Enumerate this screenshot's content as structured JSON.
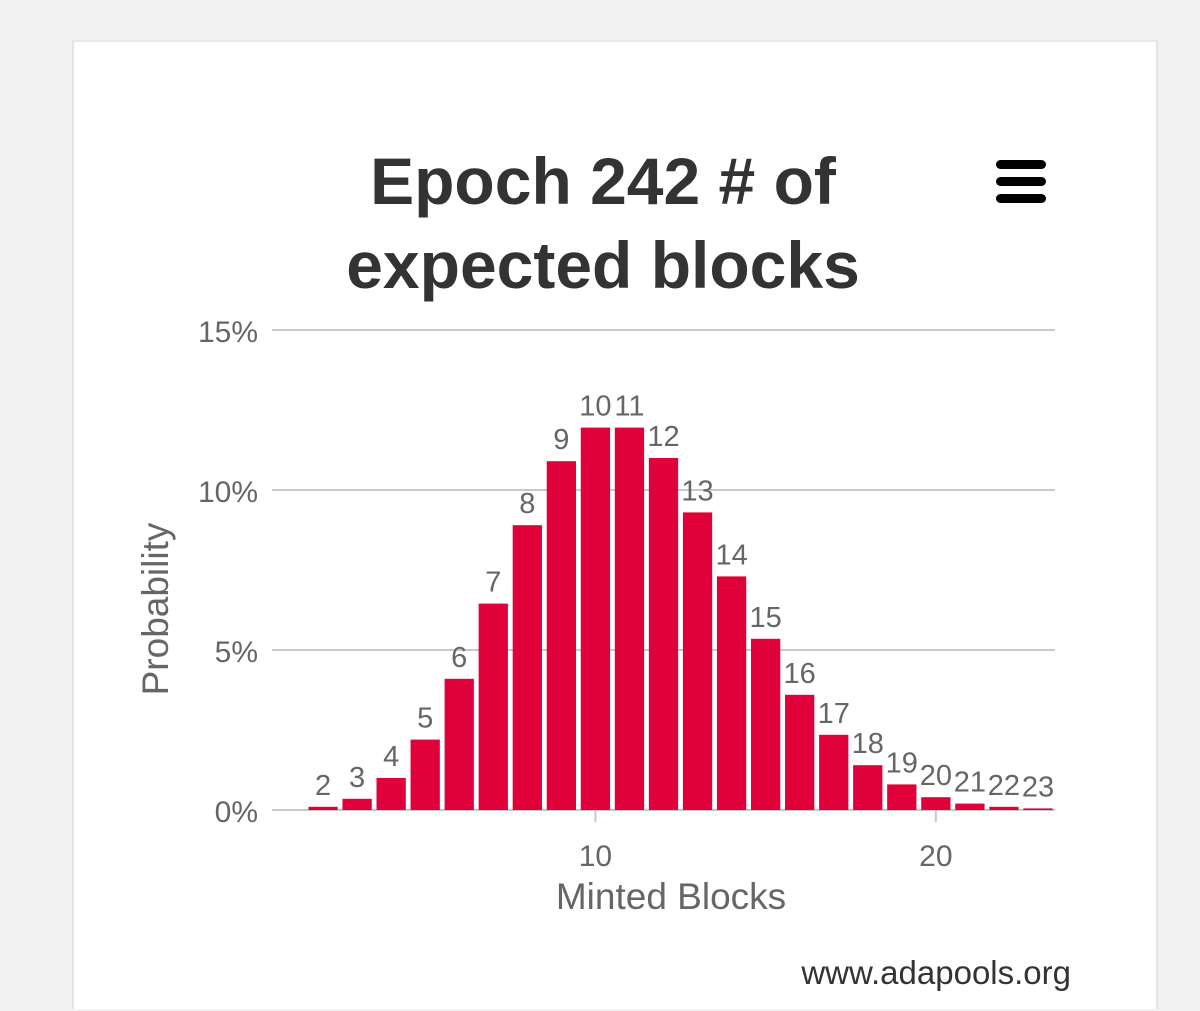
{
  "chart_data": {
    "type": "bar",
    "title_lines": [
      "Epoch 242 # of",
      "expected blocks"
    ],
    "xlabel": "Minted Blocks",
    "ylabel": "Probability",
    "x": [
      2,
      3,
      4,
      5,
      6,
      7,
      8,
      9,
      10,
      11,
      12,
      13,
      14,
      15,
      16,
      17,
      18,
      19,
      20,
      21,
      22,
      23
    ],
    "values": [
      0.1,
      0.35,
      1.0,
      2.2,
      4.1,
      6.45,
      8.9,
      10.9,
      11.95,
      11.95,
      11.0,
      9.3,
      7.3,
      5.35,
      3.6,
      2.35,
      1.4,
      0.8,
      0.4,
      0.2,
      0.1,
      0.05
    ],
    "data_labels": [
      "2",
      "3",
      "4",
      "5",
      "6",
      "7",
      "8",
      "9",
      "10",
      "11",
      "12",
      "13",
      "14",
      "15",
      "16",
      "17",
      "18",
      "19",
      "20",
      "21",
      "22",
      "23"
    ],
    "xlim": [
      0.5,
      23.5
    ],
    "ylim": [
      0,
      15
    ],
    "yticks": [
      0,
      5,
      10,
      15
    ],
    "ytick_labels": [
      "0%",
      "5%",
      "10%",
      "15%"
    ],
    "xticks": [
      10,
      20
    ],
    "xtick_labels": [
      "10",
      "20"
    ],
    "grid": true,
    "legend": "none",
    "bar_color": "#e0003a",
    "credit": "www.adapools.org"
  },
  "colors": {
    "grid": "#c8c8c8",
    "label": "#666666",
    "title": "#333333"
  },
  "menu_icon": "hamburger-menu-icon"
}
